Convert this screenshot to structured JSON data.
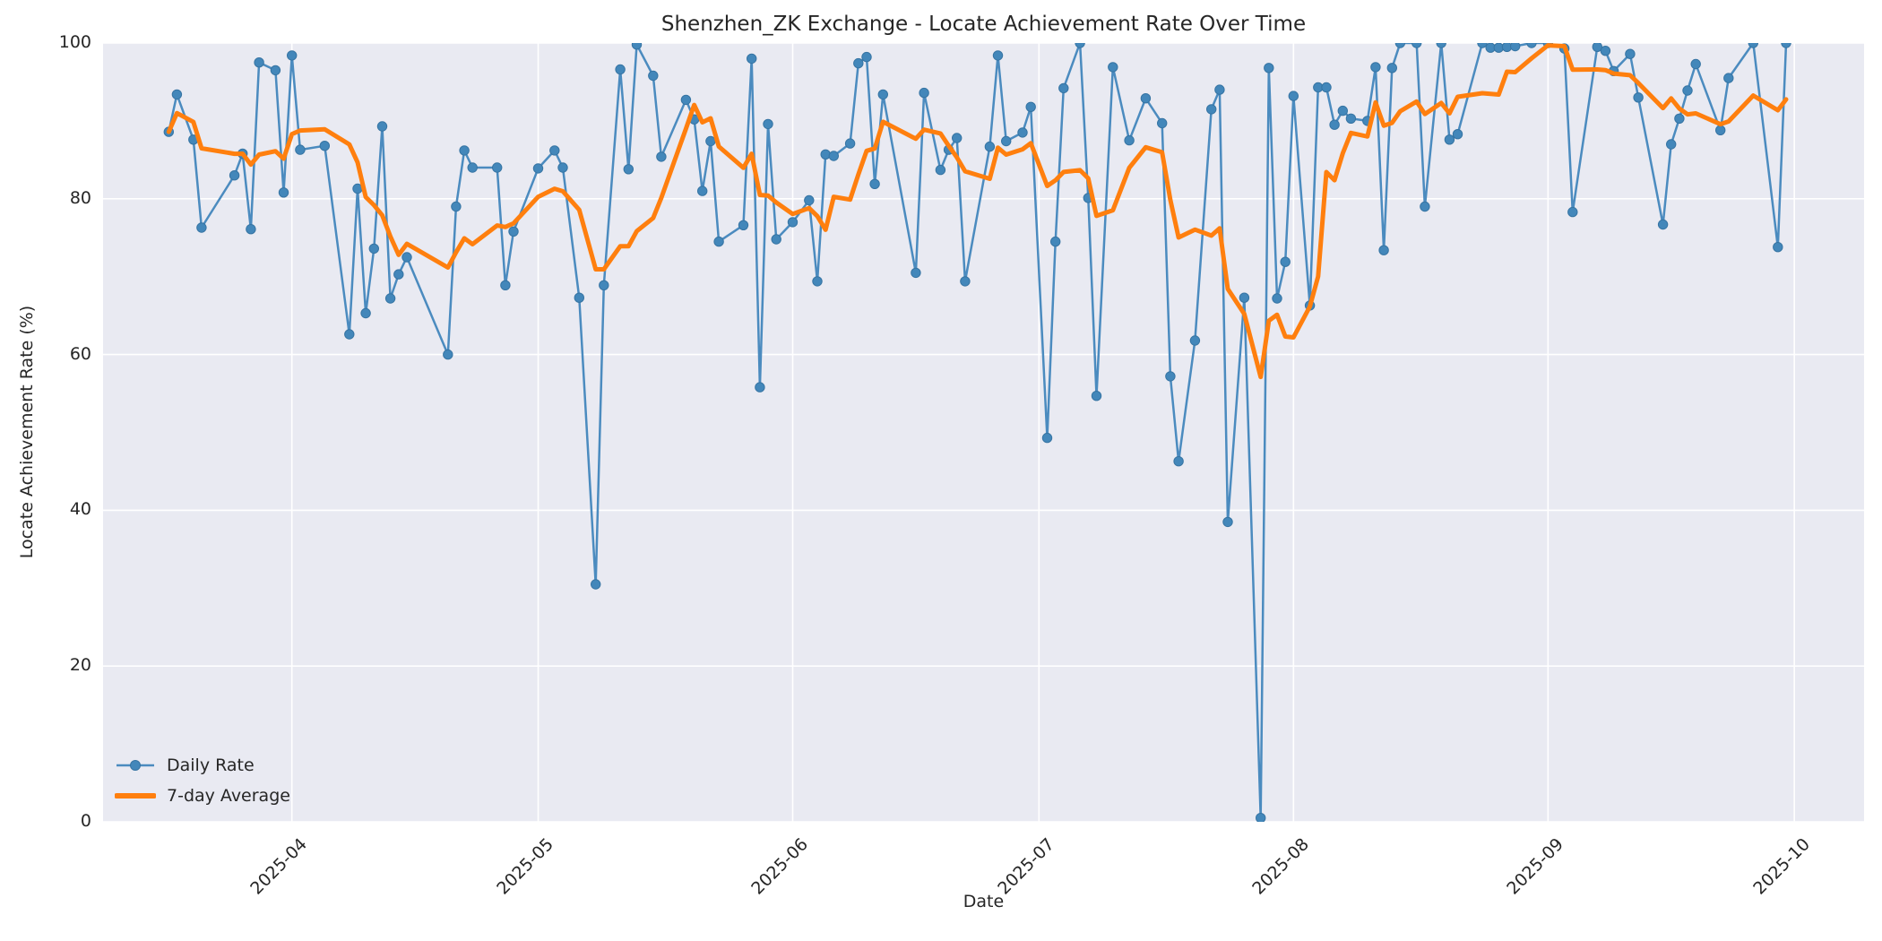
{
  "figure": {
    "title": "Shenzhen_ZK Exchange - Locate Achievement Rate Over Time",
    "xlabel": "Date",
    "ylabel": "Locate Achievement Rate (%)"
  },
  "colors": {
    "daily_line": "#4b8bbf",
    "daily_marker_fill": "#4387ba",
    "daily_marker_edge": "#3674a3",
    "avg_line": "#ff7f0e",
    "plot_background": "#e9eaf2",
    "gridline": "#ffffff",
    "text": "#262626"
  },
  "chart_data": {
    "type": "line",
    "title": "Shenzhen_ZK Exchange - Locate Achievement Rate Over Time",
    "xlabel": "Date",
    "ylabel": "Locate Achievement Rate (%)",
    "ylim": [
      0,
      100
    ],
    "yticks": [
      0,
      20,
      40,
      60,
      80,
      100
    ],
    "xlim": [
      "2025-03-09",
      "2025-10-09"
    ],
    "xticks": [
      {
        "date": "2025-04-01",
        "label": "2025-04"
      },
      {
        "date": "2025-05-01",
        "label": "2025-05"
      },
      {
        "date": "2025-06-01",
        "label": "2025-06"
      },
      {
        "date": "2025-07-01",
        "label": "2025-07"
      },
      {
        "date": "2025-08-01",
        "label": "2025-08"
      },
      {
        "date": "2025-09-01",
        "label": "2025-09"
      },
      {
        "date": "2025-10-01",
        "label": "2025-10"
      }
    ],
    "grid": true,
    "legend_position": "lower left",
    "series": [
      {
        "name": "Daily Rate",
        "color": "#4b8bbf",
        "marker": "circle",
        "linewidth": 2.5,
        "points": [
          [
            "2025-03-17",
            88.6
          ],
          [
            "2025-03-18",
            93.4
          ],
          [
            "2025-03-20",
            87.6
          ],
          [
            "2025-03-21",
            76.3
          ],
          [
            "2025-03-25",
            83.0
          ],
          [
            "2025-03-26",
            85.8
          ],
          [
            "2025-03-27",
            76.1
          ],
          [
            "2025-03-28",
            97.5
          ],
          [
            "2025-03-30",
            96.5
          ],
          [
            "2025-03-31",
            80.8
          ],
          [
            "2025-04-01",
            98.4
          ],
          [
            "2025-04-02",
            86.3
          ],
          [
            "2025-04-05",
            86.8
          ],
          [
            "2025-04-08",
            62.6
          ],
          [
            "2025-04-09",
            81.3
          ],
          [
            "2025-04-10",
            65.3
          ],
          [
            "2025-04-11",
            73.6
          ],
          [
            "2025-04-12",
            89.3
          ],
          [
            "2025-04-13",
            67.2
          ],
          [
            "2025-04-14",
            70.3
          ],
          [
            "2025-04-15",
            72.5
          ],
          [
            "2025-04-20",
            60.0
          ],
          [
            "2025-04-21",
            79.0
          ],
          [
            "2025-04-22",
            86.2
          ],
          [
            "2025-04-23",
            84.0
          ],
          [
            "2025-04-26",
            84.0
          ],
          [
            "2025-04-27",
            68.9
          ],
          [
            "2025-04-28",
            75.8
          ],
          [
            "2025-05-01",
            83.9
          ],
          [
            "2025-05-03",
            86.2
          ],
          [
            "2025-05-04",
            84.0
          ],
          [
            "2025-05-06",
            67.3
          ],
          [
            "2025-05-08",
            30.5
          ],
          [
            "2025-05-09",
            68.9
          ],
          [
            "2025-05-11",
            96.6
          ],
          [
            "2025-05-12",
            83.8
          ],
          [
            "2025-05-13",
            99.8
          ],
          [
            "2025-05-15",
            95.8
          ],
          [
            "2025-05-16",
            85.4
          ],
          [
            "2025-05-19",
            92.7
          ],
          [
            "2025-05-20",
            90.2
          ],
          [
            "2025-05-21",
            81.0
          ],
          [
            "2025-05-22",
            87.4
          ],
          [
            "2025-05-23",
            74.5
          ],
          [
            "2025-05-26",
            76.6
          ],
          [
            "2025-05-27",
            98.0
          ],
          [
            "2025-05-28",
            55.8
          ],
          [
            "2025-05-29",
            89.6
          ],
          [
            "2025-05-30",
            74.8
          ],
          [
            "2025-06-01",
            77.0
          ],
          [
            "2025-06-03",
            79.8
          ],
          [
            "2025-06-04",
            69.4
          ],
          [
            "2025-06-05",
            85.7
          ],
          [
            "2025-06-06",
            85.5
          ],
          [
            "2025-06-08",
            87.1
          ],
          [
            "2025-06-09",
            97.4
          ],
          [
            "2025-06-10",
            98.2
          ],
          [
            "2025-06-11",
            81.9
          ],
          [
            "2025-06-12",
            93.4
          ],
          [
            "2025-06-16",
            70.5
          ],
          [
            "2025-06-17",
            93.6
          ],
          [
            "2025-06-19",
            83.7
          ],
          [
            "2025-06-20",
            86.3
          ],
          [
            "2025-06-21",
            87.8
          ],
          [
            "2025-06-22",
            69.4
          ],
          [
            "2025-06-25",
            86.7
          ],
          [
            "2025-06-26",
            98.4
          ],
          [
            "2025-06-27",
            87.4
          ],
          [
            "2025-06-29",
            88.5
          ],
          [
            "2025-06-30",
            91.8
          ],
          [
            "2025-07-02",
            49.3
          ],
          [
            "2025-07-03",
            74.5
          ],
          [
            "2025-07-04",
            94.2
          ],
          [
            "2025-07-06",
            100.0
          ],
          [
            "2025-07-07",
            80.1
          ],
          [
            "2025-07-08",
            54.7
          ],
          [
            "2025-07-10",
            96.9
          ],
          [
            "2025-07-12",
            87.5
          ],
          [
            "2025-07-14",
            92.9
          ],
          [
            "2025-07-16",
            89.7
          ],
          [
            "2025-07-17",
            57.2
          ],
          [
            "2025-07-18",
            46.3
          ],
          [
            "2025-07-20",
            61.8
          ],
          [
            "2025-07-22",
            91.5
          ],
          [
            "2025-07-23",
            94.0
          ],
          [
            "2025-07-24",
            38.5
          ],
          [
            "2025-07-26",
            67.3
          ],
          [
            "2025-07-28",
            0.5
          ],
          [
            "2025-07-29",
            96.8
          ],
          [
            "2025-07-30",
            67.2
          ],
          [
            "2025-07-31",
            71.9
          ],
          [
            "2025-08-01",
            93.2
          ],
          [
            "2025-08-03",
            66.3
          ],
          [
            "2025-08-04",
            94.3
          ],
          [
            "2025-08-05",
            94.3
          ],
          [
            "2025-08-06",
            89.5
          ],
          [
            "2025-08-07",
            91.3
          ],
          [
            "2025-08-08",
            90.3
          ],
          [
            "2025-08-10",
            90.0
          ],
          [
            "2025-08-11",
            96.9
          ],
          [
            "2025-08-12",
            73.4
          ],
          [
            "2025-08-13",
            96.8
          ],
          [
            "2025-08-14",
            100.0
          ],
          [
            "2025-08-16",
            100.0
          ],
          [
            "2025-08-17",
            79.0
          ],
          [
            "2025-08-19",
            100.0
          ],
          [
            "2025-08-20",
            87.6
          ],
          [
            "2025-08-21",
            88.3
          ],
          [
            "2025-08-24",
            100.0
          ],
          [
            "2025-08-25",
            99.4
          ],
          [
            "2025-08-26",
            99.4
          ],
          [
            "2025-08-27",
            99.5
          ],
          [
            "2025-08-28",
            99.6
          ],
          [
            "2025-08-30",
            100.0
          ],
          [
            "2025-09-01",
            100.0
          ],
          [
            "2025-09-03",
            99.3
          ],
          [
            "2025-09-04",
            78.3
          ],
          [
            "2025-09-07",
            99.5
          ],
          [
            "2025-09-08",
            99.0
          ],
          [
            "2025-09-09",
            96.4
          ],
          [
            "2025-09-11",
            98.6
          ],
          [
            "2025-09-12",
            93.0
          ],
          [
            "2025-09-15",
            76.7
          ],
          [
            "2025-09-16",
            87.0
          ],
          [
            "2025-09-17",
            90.3
          ],
          [
            "2025-09-18",
            93.9
          ],
          [
            "2025-09-19",
            97.3
          ],
          [
            "2025-09-22",
            88.8
          ],
          [
            "2025-09-23",
            95.5
          ],
          [
            "2025-09-26",
            100.0
          ],
          [
            "2025-09-29",
            73.8
          ],
          [
            "2025-09-30",
            100.0
          ]
        ]
      },
      {
        "name": "7-day Average",
        "color": "#ff7f0e",
        "marker": "none",
        "linewidth": 5,
        "derived": "rolling mean over a 7-point window (min 1 point) of the Daily Rate series"
      }
    ]
  }
}
